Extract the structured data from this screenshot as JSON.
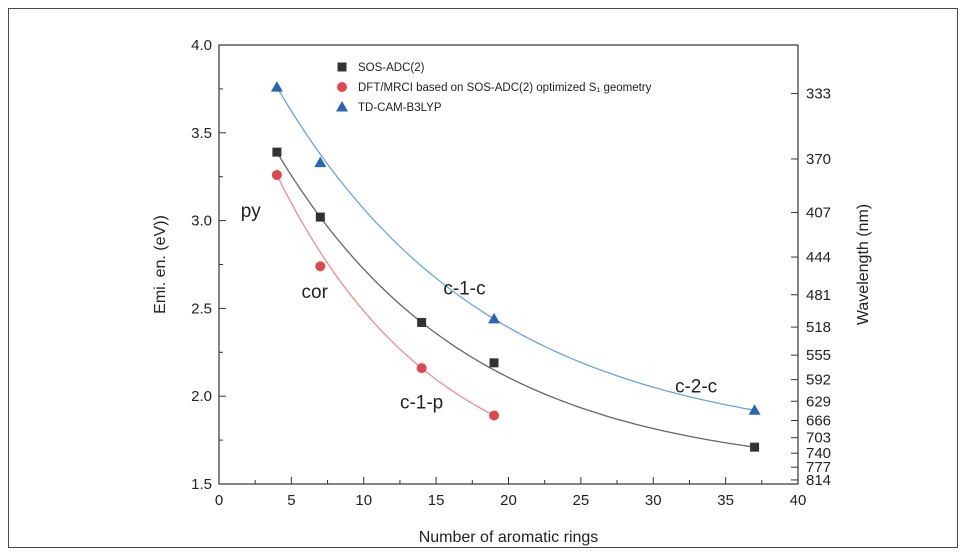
{
  "chart_data": {
    "type": "scatter",
    "xlabel": "Number of aromatic rings",
    "ylabel": "Emi. en. (eV))",
    "y2label": "Wavelength (nm)",
    "xlim": [
      0,
      40
    ],
    "ylim": [
      1.5,
      4.0
    ],
    "x_ticks": [
      "0",
      "5",
      "10",
      "15",
      "20",
      "25",
      "30",
      "35",
      "40"
    ],
    "y_ticks": [
      "1.5",
      "2.0",
      "2.5",
      "3.0",
      "3.5",
      "4.0"
    ],
    "y2_ticks": [
      "333",
      "370",
      "407",
      "444",
      "481",
      "518",
      "555",
      "592",
      "629",
      "666",
      "703",
      "740",
      "777",
      "814"
    ],
    "series": [
      {
        "name": "SOS-ADC(2)",
        "color": "#333333",
        "marker": "square",
        "curve": "#666666",
        "x": [
          4,
          7,
          14,
          19,
          37
        ],
        "y": [
          3.39,
          3.02,
          2.42,
          2.19,
          1.71
        ]
      },
      {
        "name": "DFT/MRCI based on SOS-ADC(2) optimized S₁ geometry",
        "color": "#e0474c",
        "marker": "circle",
        "curve": "#ef8a92",
        "x": [
          4,
          7,
          14,
          19
        ],
        "y": [
          3.26,
          2.74,
          2.16,
          1.89
        ]
      },
      {
        "name": "TD-CAM-B3LYP",
        "color": "#2a64b4",
        "marker": "triangle",
        "curve": "#6aa4e0",
        "x": [
          4,
          7,
          19,
          37
        ],
        "y": [
          3.76,
          3.33,
          2.44,
          1.92
        ]
      }
    ],
    "annotations": [
      {
        "text": "py",
        "x": 1.5,
        "y": 3.02
      },
      {
        "text": "cor",
        "x": 5.7,
        "y": 2.56
      },
      {
        "text": "c-1-c",
        "x": 15.5,
        "y": 2.58
      },
      {
        "text": "c-1-p",
        "x": 12.5,
        "y": 1.93
      },
      {
        "text": "c-2-c",
        "x": 31.5,
        "y": 2.02
      }
    ],
    "legend_position": "top-left",
    "grid": false
  }
}
